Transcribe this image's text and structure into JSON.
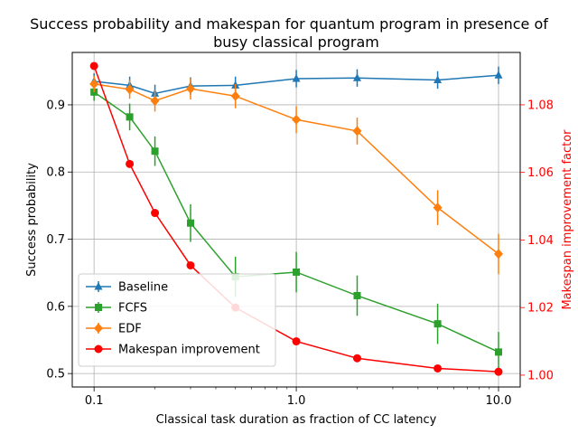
{
  "chart_data": {
    "type": "line",
    "title_lines": [
      "Success probability and makespan for quantum program in presence of",
      "busy classical program"
    ],
    "xlabel": "Classical task duration as fraction of CC latency",
    "ylabel_left": "Success probability",
    "ylabel_right": "Makespan improvement factor",
    "x_scale": "log",
    "xlim": [
      0.078,
      12.8
    ],
    "ylim_left": [
      0.48,
      0.978
    ],
    "ylim_right": [
      0.9965,
      1.0955
    ],
    "grid": true,
    "legend_position": "lower-left",
    "x_ticks": [
      {
        "value": 0.1,
        "label": "0.1"
      },
      {
        "value": 1.0,
        "label": "1.0"
      },
      {
        "value": 10.0,
        "label": "10.0"
      }
    ],
    "y_ticks_left": [
      {
        "value": 0.5,
        "label": "0.5"
      },
      {
        "value": 0.6,
        "label": "0.6"
      },
      {
        "value": 0.7,
        "label": "0.7"
      },
      {
        "value": 0.8,
        "label": "0.8"
      },
      {
        "value": 0.9,
        "label": "0.9"
      }
    ],
    "y_ticks_right": [
      {
        "value": 1.0,
        "label": "1.00"
      },
      {
        "value": 1.02,
        "label": "1.02"
      },
      {
        "value": 1.04,
        "label": "1.04"
      },
      {
        "value": 1.06,
        "label": "1.06"
      },
      {
        "value": 1.08,
        "label": "1.08"
      }
    ],
    "x": [
      0.1,
      0.15,
      0.2,
      0.3,
      0.5,
      1.0,
      2.0,
      5.0,
      10.0
    ],
    "series": [
      {
        "name": "Baseline",
        "axis": "left",
        "color": "#1f77b4",
        "marker": "triangle",
        "values": [
          0.935,
          0.929,
          0.917,
          0.928,
          0.929,
          0.939,
          0.94,
          0.937,
          0.944
        ],
        "errors": [
          0.012,
          0.013,
          0.013,
          0.013,
          0.013,
          0.013,
          0.013,
          0.013,
          0.013
        ]
      },
      {
        "name": "FCFS",
        "axis": "left",
        "color": "#2ca02c",
        "marker": "square",
        "values": [
          0.919,
          0.882,
          0.831,
          0.724,
          0.644,
          0.651,
          0.616,
          0.574,
          0.532
        ],
        "errors": [
          0.013,
          0.02,
          0.022,
          0.028,
          0.03,
          0.03,
          0.03,
          0.03,
          0.03
        ]
      },
      {
        "name": "EDF",
        "axis": "left",
        "color": "#ff7f0e",
        "marker": "diamond",
        "values": [
          0.931,
          0.923,
          0.906,
          0.924,
          0.913,
          0.878,
          0.861,
          0.747,
          0.678
        ],
        "errors": [
          0.012,
          0.014,
          0.016,
          0.016,
          0.018,
          0.02,
          0.02,
          0.026,
          0.03
        ]
      },
      {
        "name": "Makespan improvement",
        "axis": "right",
        "color": "#ff0000",
        "marker": "circle",
        "values": [
          1.0915,
          1.0625,
          1.048,
          1.0325,
          1.02,
          1.01,
          1.005,
          1.002,
          1.001
        ],
        "errors": null
      }
    ],
    "colors": {
      "right_axis": "#ff0000",
      "grid": "#b0b0b0",
      "text": "#000000"
    }
  }
}
